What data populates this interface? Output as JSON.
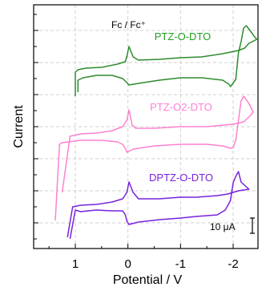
{
  "chart_data": {
    "type": "line",
    "xlabel": "Potential / V",
    "ylabel": "Current",
    "x_reversed": true,
    "xlim": [
      1.55,
      -2.5
    ],
    "xticks": [
      {
        "value": 1,
        "label": "1"
      },
      {
        "value": 0,
        "label": "0"
      },
      {
        "value": -1,
        "label": "-1"
      },
      {
        "value": -2,
        "label": "-2"
      }
    ],
    "grid": true,
    "reference_label": "Fc / Fc⁺",
    "scale_bar_label": "10 μA",
    "series": [
      {
        "name": "PTZ-O-DTO",
        "color": "#2e8b2e",
        "label_color": "#22a022",
        "points": [
          [
            0.95,
            115
          ],
          [
            0.95,
            100
          ],
          [
            0.85,
            97
          ],
          [
            0.6,
            94
          ],
          [
            0.3,
            94
          ],
          [
            0.1,
            98
          ],
          [
            0.02,
            103
          ],
          [
            -0.02,
            106
          ],
          [
            -0.2,
            104
          ],
          [
            -0.6,
            100
          ],
          [
            -1.0,
            97
          ],
          [
            -1.4,
            97
          ],
          [
            -1.8,
            100
          ],
          [
            -1.92,
            105
          ],
          [
            -1.95,
            108
          ],
          [
            -2.05,
            99
          ],
          [
            -2.1,
            66
          ],
          [
            -2.15,
            52
          ],
          [
            -2.2,
            35
          ],
          [
            -2.25,
            32
          ],
          [
            -2.32,
            38
          ],
          [
            -2.42,
            47
          ],
          [
            -2.45,
            49
          ],
          [
            -2.3,
            54
          ],
          [
            -2.22,
            60
          ],
          [
            -2.1,
            63
          ],
          [
            -1.8,
            67
          ],
          [
            -1.4,
            71
          ],
          [
            -1.0,
            72
          ],
          [
            -0.6,
            74
          ],
          [
            -0.2,
            75
          ],
          [
            -0.1,
            71
          ],
          [
            -0.02,
            58
          ],
          [
            0.02,
            70
          ],
          [
            0.05,
            77
          ],
          [
            0.2,
            80
          ],
          [
            0.5,
            84
          ],
          [
            0.8,
            85
          ],
          [
            0.95,
            87
          ],
          [
            1.0,
            90
          ],
          [
            1.0,
            118
          ],
          [
            1.0,
            120
          ]
        ]
      },
      {
        "name": "PTZ-O2-DTO",
        "color": "#ff80d0",
        "label_color": "#ff80d8",
        "points": [
          [
            1.38,
            275
          ],
          [
            1.3,
            180
          ],
          [
            1.25,
            178
          ],
          [
            0.9,
            175
          ],
          [
            0.5,
            175
          ],
          [
            0.2,
            177
          ],
          [
            0.1,
            180
          ],
          [
            0.04,
            186
          ],
          [
            0.02,
            190
          ],
          [
            -0.1,
            186
          ],
          [
            -0.5,
            182
          ],
          [
            -1.0,
            180
          ],
          [
            -1.5,
            180
          ],
          [
            -1.8,
            182
          ],
          [
            -1.95,
            185
          ],
          [
            -2.0,
            184
          ],
          [
            -2.05,
            175
          ],
          [
            -2.1,
            150
          ],
          [
            -2.15,
            126
          ],
          [
            -2.2,
            120
          ],
          [
            -2.3,
            129
          ],
          [
            -2.38,
            140
          ],
          [
            -2.3,
            146
          ],
          [
            -2.2,
            152
          ],
          [
            -2.0,
            155
          ],
          [
            -1.5,
            158
          ],
          [
            -1.0,
            158
          ],
          [
            -0.5,
            160
          ],
          [
            -0.15,
            160
          ],
          [
            -0.08,
            156
          ],
          [
            -0.02,
            137
          ],
          [
            0.02,
            150
          ],
          [
            0.1,
            158
          ],
          [
            0.3,
            163
          ],
          [
            0.6,
            166
          ],
          [
            0.9,
            167
          ],
          [
            1.1,
            170
          ],
          [
            1.25,
            240
          ]
        ]
      },
      {
        "name": "DPTZ-O-DTO",
        "color": "#7722dd",
        "label_color": "#7722dd",
        "points": [
          [
            1.1,
            298
          ],
          [
            1.0,
            262
          ],
          [
            0.9,
            264
          ],
          [
            0.6,
            262
          ],
          [
            0.3,
            263
          ],
          [
            0.1,
            263
          ],
          [
            0.05,
            268
          ],
          [
            0.02,
            276
          ],
          [
            -0.02,
            280
          ],
          [
            -0.2,
            277
          ],
          [
            -0.6,
            274
          ],
          [
            -1.0,
            272
          ],
          [
            -1.3,
            270
          ],
          [
            -1.7,
            268
          ],
          [
            -1.85,
            262
          ],
          [
            -1.95,
            250
          ],
          [
            -2.0,
            228
          ],
          [
            -2.05,
            220
          ],
          [
            -2.1,
            214
          ],
          [
            -2.15,
            227
          ],
          [
            -2.25,
            233
          ],
          [
            -2.3,
            236
          ],
          [
            -2.1,
            238
          ],
          [
            -1.9,
            242
          ],
          [
            -1.7,
            244
          ],
          [
            -1.3,
            246
          ],
          [
            -1.0,
            246
          ],
          [
            -0.6,
            248
          ],
          [
            -0.2,
            248
          ],
          [
            -0.1,
            240
          ],
          [
            -0.02,
            227
          ],
          [
            0.02,
            240
          ],
          [
            0.1,
            248
          ],
          [
            0.3,
            252
          ],
          [
            0.6,
            255
          ],
          [
            0.9,
            256
          ],
          [
            1.05,
            258
          ],
          [
            1.15,
            296
          ]
        ]
      }
    ]
  }
}
